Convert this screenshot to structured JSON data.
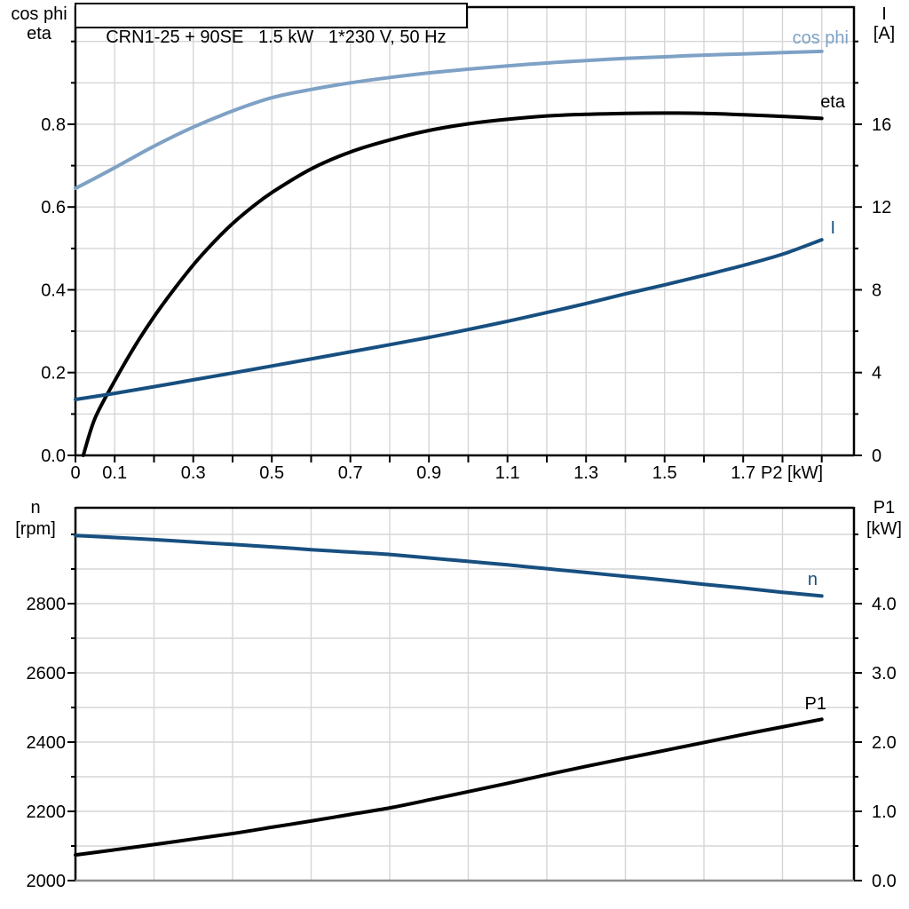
{
  "colors": {
    "light_blue": "#7EA1C5",
    "dark_blue": "#174F80",
    "black": "#000000",
    "grid": "#D6D6D6",
    "frame": "#000000",
    "bottom_line": "#8E8E8E",
    "background": "#FFFFFF"
  },
  "chart_data": [
    {
      "type": "line",
      "title": "CRN1-25 + 90SE   1.5 kW   1*230 V, 50 Hz",
      "x_axis": {
        "label": "P2 [kW]",
        "range": [
          0,
          1.982
        ],
        "tick_step": 0.1,
        "tick_max": 1.9,
        "labeled_ticks": [
          0,
          0.1,
          0.3,
          0.5,
          0.7,
          0.9,
          1.1,
          1.3,
          1.5,
          1.7
        ],
        "labels": [
          "0",
          "0.1",
          "0.3",
          "0.5",
          "0.7",
          "0.9",
          "1.1",
          "1.3",
          "1.5",
          "1.7"
        ]
      },
      "left_axis": {
        "header": [
          "cos phi",
          "eta"
        ],
        "range": [
          0,
          1.083
        ],
        "major_ticks": [
          0,
          0.2,
          0.4,
          0.6,
          0.8
        ],
        "major_labels": [
          "0.0",
          "0.2",
          "0.4",
          "0.6",
          "0.8"
        ],
        "minor_step": 0.1,
        "minor_max": 1.0
      },
      "right_axis": {
        "header": [
          "I",
          "[A]"
        ],
        "range": [
          0,
          21.66
        ],
        "major_ticks": [
          0,
          4,
          8,
          12,
          16
        ],
        "major_labels": [
          "0",
          "4",
          "8",
          "12",
          "16"
        ],
        "minor_step": 2,
        "minor_max": 20
      },
      "grid": {
        "x_from": 0.1,
        "x_to": 1.9,
        "x_step": 0.1,
        "y_from": 0.1,
        "y_to": 1.0,
        "y_step": 0.1
      },
      "series": [
        {
          "name": "cos phi",
          "axis": "left",
          "color": "light_blue",
          "points": [
            [
              0,
              0.645
            ],
            [
              0.1,
              0.695
            ],
            [
              0.2,
              0.747
            ],
            [
              0.3,
              0.793
            ],
            [
              0.4,
              0.832
            ],
            [
              0.5,
              0.864
            ],
            [
              0.6,
              0.884
            ],
            [
              0.7,
              0.9
            ],
            [
              0.8,
              0.913
            ],
            [
              0.9,
              0.924
            ],
            [
              1.0,
              0.933
            ],
            [
              1.1,
              0.941
            ],
            [
              1.2,
              0.948
            ],
            [
              1.3,
              0.954
            ],
            [
              1.4,
              0.959
            ],
            [
              1.5,
              0.963
            ],
            [
              1.6,
              0.967
            ],
            [
              1.7,
              0.97
            ],
            [
              1.8,
              0.973
            ],
            [
              1.9,
              0.976
            ]
          ]
        },
        {
          "name": "eta",
          "axis": "left",
          "color": "black",
          "points": [
            [
              0.02,
              0
            ],
            [
              0.05,
              0.09
            ],
            [
              0.1,
              0.18
            ],
            [
              0.15,
              0.262
            ],
            [
              0.2,
              0.335
            ],
            [
              0.25,
              0.4
            ],
            [
              0.3,
              0.46
            ],
            [
              0.35,
              0.513
            ],
            [
              0.4,
              0.56
            ],
            [
              0.45,
              0.6
            ],
            [
              0.5,
              0.635
            ],
            [
              0.6,
              0.692
            ],
            [
              0.7,
              0.733
            ],
            [
              0.8,
              0.762
            ],
            [
              0.9,
              0.785
            ],
            [
              1.0,
              0.801
            ],
            [
              1.1,
              0.812
            ],
            [
              1.2,
              0.82
            ],
            [
              1.3,
              0.824
            ],
            [
              1.4,
              0.826
            ],
            [
              1.5,
              0.827
            ],
            [
              1.6,
              0.826
            ],
            [
              1.7,
              0.823
            ],
            [
              1.8,
              0.819
            ],
            [
              1.9,
              0.814
            ]
          ]
        },
        {
          "name": "I",
          "axis": "right",
          "color": "dark_blue",
          "points": [
            [
              0,
              2.7
            ],
            [
              0.1,
              3.0
            ],
            [
              0.2,
              3.32
            ],
            [
              0.3,
              3.65
            ],
            [
              0.4,
              3.98
            ],
            [
              0.5,
              4.32
            ],
            [
              0.6,
              4.66
            ],
            [
              0.7,
              5.0
            ],
            [
              0.8,
              5.35
            ],
            [
              0.9,
              5.7
            ],
            [
              1.0,
              6.08
            ],
            [
              1.1,
              6.48
            ],
            [
              1.2,
              6.9
            ],
            [
              1.3,
              7.34
            ],
            [
              1.4,
              7.8
            ],
            [
              1.5,
              8.24
            ],
            [
              1.6,
              8.7
            ],
            [
              1.7,
              9.18
            ],
            [
              1.8,
              9.72
            ],
            [
              1.9,
              10.42
            ]
          ]
        }
      ]
    },
    {
      "type": "line",
      "title": "",
      "x_axis": {
        "label": "",
        "range": [
          0,
          1.982
        ],
        "tick_step": 0,
        "tick_max": 0,
        "labeled_ticks": [],
        "labels": []
      },
      "left_axis": {
        "header": [
          "n",
          "[rpm]"
        ],
        "range": [
          2000,
          3077
        ],
        "major_ticks": [
          2000,
          2200,
          2400,
          2600,
          2800
        ],
        "major_labels": [
          "2000",
          "2200",
          "2400",
          "2600",
          "2800"
        ],
        "minor_step": 100,
        "minor_max": 3000
      },
      "right_axis": {
        "header": [
          "P1",
          "[kW]"
        ],
        "range": [
          0,
          5.385
        ],
        "major_ticks": [
          0,
          1,
          2,
          3,
          4
        ],
        "major_labels": [
          "0.0",
          "1.0",
          "2.0",
          "3.0",
          "4.0"
        ],
        "minor_step": 0.5,
        "minor_max": 5.0
      },
      "grid": {
        "x_from": 0.2,
        "x_to": 1.8,
        "x_step": 0.2,
        "y_from": 2100,
        "y_to": 3000,
        "y_step": 100
      },
      "series": [
        {
          "name": "n",
          "axis": "left",
          "color": "dark_blue",
          "points": [
            [
              0,
              2997
            ],
            [
              0.1,
              2991
            ],
            [
              0.2,
              2985
            ],
            [
              0.3,
              2978
            ],
            [
              0.4,
              2971
            ],
            [
              0.5,
              2964
            ],
            [
              0.6,
              2956
            ],
            [
              0.7,
              2949
            ],
            [
              0.8,
              2942
            ],
            [
              0.9,
              2932
            ],
            [
              1.0,
              2922
            ],
            [
              1.1,
              2912
            ],
            [
              1.2,
              2901
            ],
            [
              1.3,
              2890
            ],
            [
              1.4,
              2879
            ],
            [
              1.5,
              2868
            ],
            [
              1.6,
              2856
            ],
            [
              1.7,
              2845
            ],
            [
              1.8,
              2833
            ],
            [
              1.9,
              2822
            ]
          ]
        },
        {
          "name": "P1",
          "axis": "right",
          "color": "black",
          "points": [
            [
              0,
              0.37
            ],
            [
              0.1,
              0.445
            ],
            [
              0.2,
              0.52
            ],
            [
              0.3,
              0.6
            ],
            [
              0.4,
              0.68
            ],
            [
              0.5,
              0.77
            ],
            [
              0.6,
              0.86
            ],
            [
              0.7,
              0.955
            ],
            [
              0.8,
              1.05
            ],
            [
              0.9,
              1.165
            ],
            [
              1.0,
              1.285
            ],
            [
              1.1,
              1.405
            ],
            [
              1.2,
              1.53
            ],
            [
              1.3,
              1.65
            ],
            [
              1.4,
              1.765
            ],
            [
              1.5,
              1.88
            ],
            [
              1.6,
              1.995
            ],
            [
              1.7,
              2.11
            ],
            [
              1.8,
              2.22
            ],
            [
              1.9,
              2.33
            ]
          ]
        }
      ]
    }
  ]
}
